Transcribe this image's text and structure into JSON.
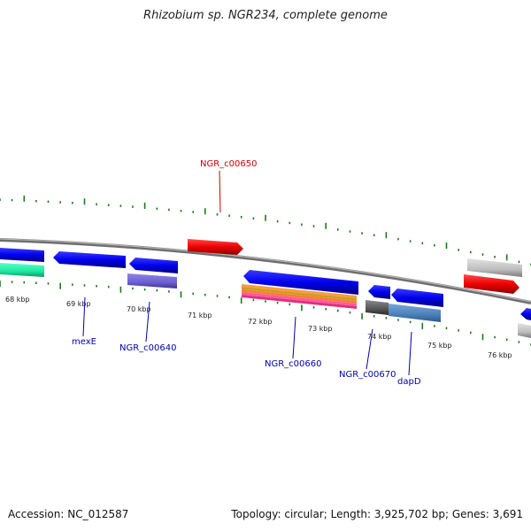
{
  "title": "Rhizobium sp. NGR234, complete genome",
  "footer": {
    "accession": "Accession: NC_012587",
    "summary": "Topology: circular; Length: 3,925,702 bp; Genes: 3,691"
  },
  "colors": {
    "backbone": "#808080",
    "tick": "#1a7a1a",
    "label_blue": "#0000aa",
    "label_red": "#cc0000"
  },
  "ticks": [
    {
      "label": "68 kbp"
    },
    {
      "label": "69 kbp"
    },
    {
      "label": "70 kbp"
    },
    {
      "label": "71 kbp"
    },
    {
      "label": "72 kbp"
    },
    {
      "label": "73 kbp"
    },
    {
      "label": "74 kbp"
    },
    {
      "label": "75 kbp"
    },
    {
      "label": "76 kbp"
    }
  ],
  "gene_labels": [
    {
      "name": "NGR_c00650",
      "color": "#cc0000"
    },
    {
      "name": "mexE",
      "color": "#0000aa"
    },
    {
      "name": "NGR_c00640",
      "color": "#0000aa"
    },
    {
      "name": "NGR_c00660",
      "color": "#0000aa"
    },
    {
      "name": "NGR_c00670",
      "color": "#0000aa"
    },
    {
      "name": "dapD",
      "color": "#0000aa"
    }
  ]
}
